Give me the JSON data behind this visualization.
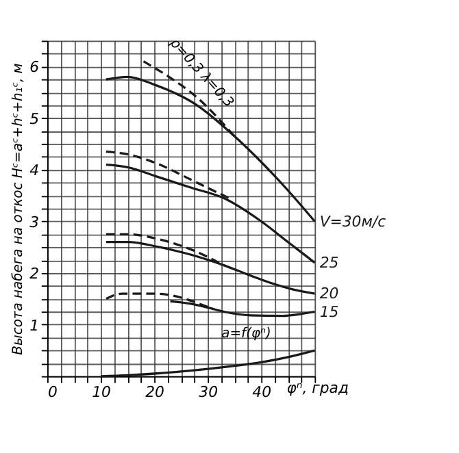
{
  "chart_data": {
    "type": "line",
    "xlabel": "φⁿ, град",
    "ylabel": "Высота набега на откос Hᶜ=aᶜ+hᶜ+h₁ᶜ, м",
    "xlim": [
      0,
      50
    ],
    "ylim": [
      0,
      6.5
    ],
    "xticks": [
      0,
      {
        "value": 2.5,
        "label": null
      },
      {
        "value": 5,
        "label": null
      },
      {
        "value": 7.5,
        "label": null
      },
      10,
      {
        "value": 12.5,
        "label": null
      },
      {
        "value": 15,
        "label": null
      },
      {
        "value": 17.5,
        "label": null
      },
      20,
      {
        "value": 22.5,
        "label": null
      },
      {
        "value": 25,
        "label": null
      },
      {
        "value": 27.5,
        "label": null
      },
      30,
      {
        "value": 32.5,
        "label": null
      },
      {
        "value": 35,
        "label": null
      },
      {
        "value": 37.5,
        "label": null
      },
      40,
      {
        "value": 42.5,
        "label": null
      },
      {
        "value": 45,
        "label": null
      },
      {
        "value": 47.5,
        "label": null
      },
      {
        "value": 50,
        "label": null
      }
    ],
    "yticks": [
      {
        "value": 0,
        "label": null
      },
      {
        "value": 0.25,
        "label": null
      },
      {
        "value": 0.5,
        "label": null
      },
      {
        "value": 0.75,
        "label": null
      },
      1,
      {
        "value": 1.25,
        "label": null
      },
      {
        "value": 1.5,
        "label": null
      },
      {
        "value": 1.75,
        "label": null
      },
      2,
      {
        "value": 2.25,
        "label": null
      },
      {
        "value": 2.5,
        "label": null
      },
      {
        "value": 2.75,
        "label": null
      },
      3,
      {
        "value": 3.25,
        "label": null
      },
      {
        "value": 3.5,
        "label": null
      },
      {
        "value": 3.75,
        "label": null
      },
      4,
      {
        "value": 4.25,
        "label": null
      },
      {
        "value": 4.5,
        "label": null
      },
      {
        "value": 4.75,
        "label": null
      },
      5,
      {
        "value": 5.25,
        "label": null
      },
      {
        "value": 5.5,
        "label": null
      },
      {
        "value": 5.75,
        "label": null
      },
      6,
      {
        "value": 6.25,
        "label": null
      },
      {
        "value": 6.5,
        "label": null
      }
    ],
    "grid": true,
    "series": [
      {
        "name": "V=30м/с",
        "color": "#1a1a1a",
        "line_style": "solid",
        "x": [
          11,
          15,
          20,
          28,
          35,
          40,
          45,
          50
        ],
        "values": [
          5.75,
          5.8,
          5.65,
          5.25,
          4.65,
          4.15,
          3.6,
          3.0
        ]
      },
      {
        "color": "#1a1a1a",
        "line_style": "dashed",
        "x": [
          18,
          22,
          28,
          35
        ],
        "values": [
          6.1,
          5.85,
          5.4,
          4.65
        ]
      },
      {
        "name": "25",
        "color": "#1a1a1a",
        "line_style": "solid",
        "x": [
          11,
          15,
          21,
          27,
          33,
          40,
          45,
          50
        ],
        "values": [
          4.1,
          4.05,
          3.85,
          3.65,
          3.45,
          3.0,
          2.6,
          2.2
        ]
      },
      {
        "color": "#1a1a1a",
        "line_style": "dashed",
        "x": [
          11,
          15,
          21,
          27,
          34
        ],
        "values": [
          4.35,
          4.3,
          4.1,
          3.8,
          3.45
        ]
      },
      {
        "name": "20",
        "color": "#1a1a1a",
        "line_style": "solid",
        "x": [
          11,
          15,
          21,
          27,
          33,
          38,
          42,
          46,
          50
        ],
        "values": [
          2.6,
          2.6,
          2.5,
          2.35,
          2.15,
          1.95,
          1.8,
          1.68,
          1.6
        ]
      },
      {
        "color": "#1a1a1a",
        "line_style": "dashed",
        "x": [
          11,
          15,
          21,
          27,
          33
        ],
        "values": [
          2.75,
          2.75,
          2.65,
          2.45,
          2.15
        ]
      },
      {
        "name": "15",
        "color": "#1a1a1a",
        "line_style": "solid",
        "x": [
          23,
          27,
          30,
          33,
          38,
          44,
          47,
          50
        ],
        "values": [
          1.45,
          1.4,
          1.33,
          1.25,
          1.18,
          1.17,
          1.2,
          1.25
        ]
      },
      {
        "color": "#1a1a1a",
        "line_style": "dashed",
        "x": [
          11,
          14,
          20,
          24,
          28,
          31
        ],
        "values": [
          1.5,
          1.6,
          1.6,
          1.55,
          1.42,
          1.3
        ]
      },
      {
        "color": "#1a1a1a",
        "line_style": "solid",
        "x": [
          10,
          15,
          20,
          25,
          30,
          35,
          40,
          45,
          50
        ],
        "values": [
          0,
          0.02,
          0.05,
          0.09,
          0.14,
          0.2,
          0.27,
          0.37,
          0.5
        ]
      }
    ],
    "annotations": [
      "ρ=0,3 λ=0,3",
      "a=f(φⁿ)"
    ]
  }
}
